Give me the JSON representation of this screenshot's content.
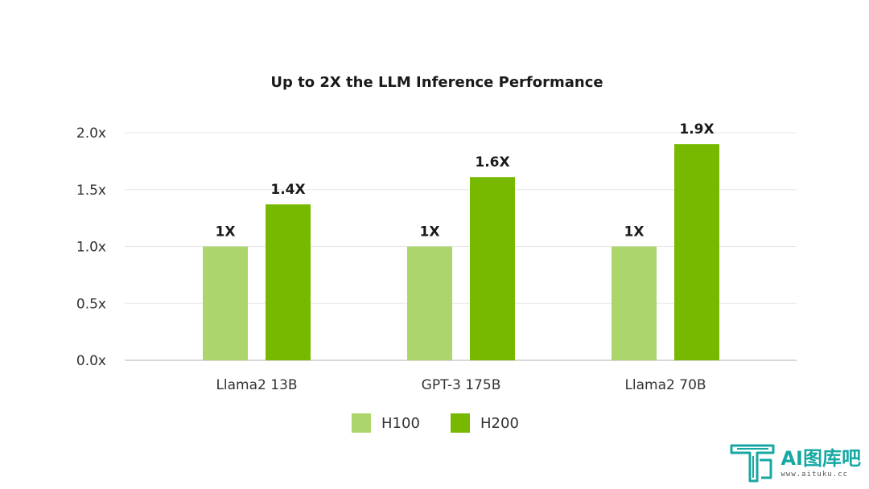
{
  "chart_data": {
    "type": "bar",
    "title": "Up to 2X the LLM Inference Performance",
    "categories": [
      "Llama2 13B",
      "GPT-3 175B",
      "Llama2 70B"
    ],
    "series": [
      {
        "name": "H100",
        "values": [
          1.0,
          1.0,
          1.0
        ],
        "labels": [
          "1X",
          "1X",
          "1X"
        ],
        "color": "#acd56b"
      },
      {
        "name": "H200",
        "values": [
          1.37,
          1.61,
          1.9
        ],
        "labels": [
          "1.4X",
          "1.6X",
          "1.9X"
        ],
        "color": "#76b900"
      }
    ],
    "y_ticks": [
      0.0,
      0.5,
      1.0,
      1.5,
      2.0
    ],
    "y_tick_labels": [
      "0.0x",
      "0.5x",
      "1.0x",
      "1.5x",
      "2.0x"
    ],
    "ylim": [
      0,
      2.0
    ],
    "xlabel": "",
    "ylabel": "",
    "grid": true,
    "legend_position": "bottom-center",
    "gridline_color": "#e6e6e6",
    "axis_color": "#cccccc"
  },
  "watermark": {
    "text": "AI图库吧",
    "subtext": "www.aituku.cc",
    "color": "#16a8a3",
    "icon": "tk-logo-icon"
  }
}
